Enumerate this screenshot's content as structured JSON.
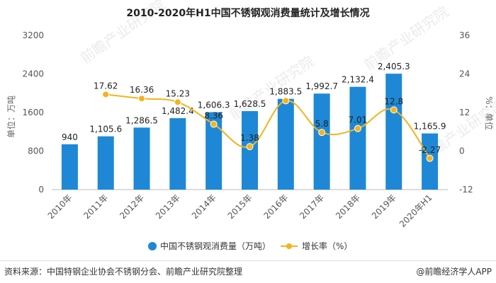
{
  "chart_data": {
    "type": "bar",
    "title": "2010-2020年H1中国不锈钢观消费量统计及增长情况",
    "categories": [
      "2010年",
      "2011年",
      "2012年",
      "2013年",
      "2014年",
      "2015年",
      "2016年",
      "2017年",
      "2018年",
      "2019年",
      "2020年H1"
    ],
    "ylabel_left": "单位：万吨",
    "ylabel_right": "%：单位",
    "ylim_left": [
      0,
      3200
    ],
    "yticks_left": [
      0,
      800,
      1600,
      2400,
      3200
    ],
    "ylim_right": [
      -12,
      36
    ],
    "yticks_right": [
      -12,
      0,
      12,
      24,
      36
    ],
    "grid": false,
    "legend_position": "bottom-center",
    "series": [
      {
        "name": "中国不锈钢观消费量（万吨）",
        "type": "bar",
        "axis": "left",
        "color": "#1e88d6",
        "values": [
          940,
          1105.6,
          1286.5,
          1482.4,
          1606.3,
          1628.5,
          1883.5,
          1992.7,
          2132.4,
          2405.3,
          1165.9
        ],
        "labels": [
          "940",
          "1,105.6",
          "1,286.5",
          "1,482.4",
          "1,606.3",
          "1,628.5",
          "1,883.5",
          "1,992.7",
          "2,132.4",
          "2,405.3",
          "1,165.9"
        ]
      },
      {
        "name": "增长率（%）",
        "type": "line",
        "axis": "right",
        "color": "#f5b31b",
        "values": [
          null,
          17.62,
          16.36,
          15.23,
          8.36,
          1.38,
          15.65,
          5.8,
          7.01,
          12.8,
          -2.27
        ],
        "labels": [
          "",
          "17.62",
          "16.36",
          "15.23",
          "8.36",
          "1.38",
          "",
          "5.8",
          "7.01",
          "12.8",
          "-2.27"
        ]
      }
    ]
  },
  "footer": {
    "source": "资料来源：中国特钢企业协会不锈钢分会、前瞻产业研究院整理",
    "brand": "@前瞻经济学人APP"
  },
  "watermark": "前瞻产业研究院"
}
